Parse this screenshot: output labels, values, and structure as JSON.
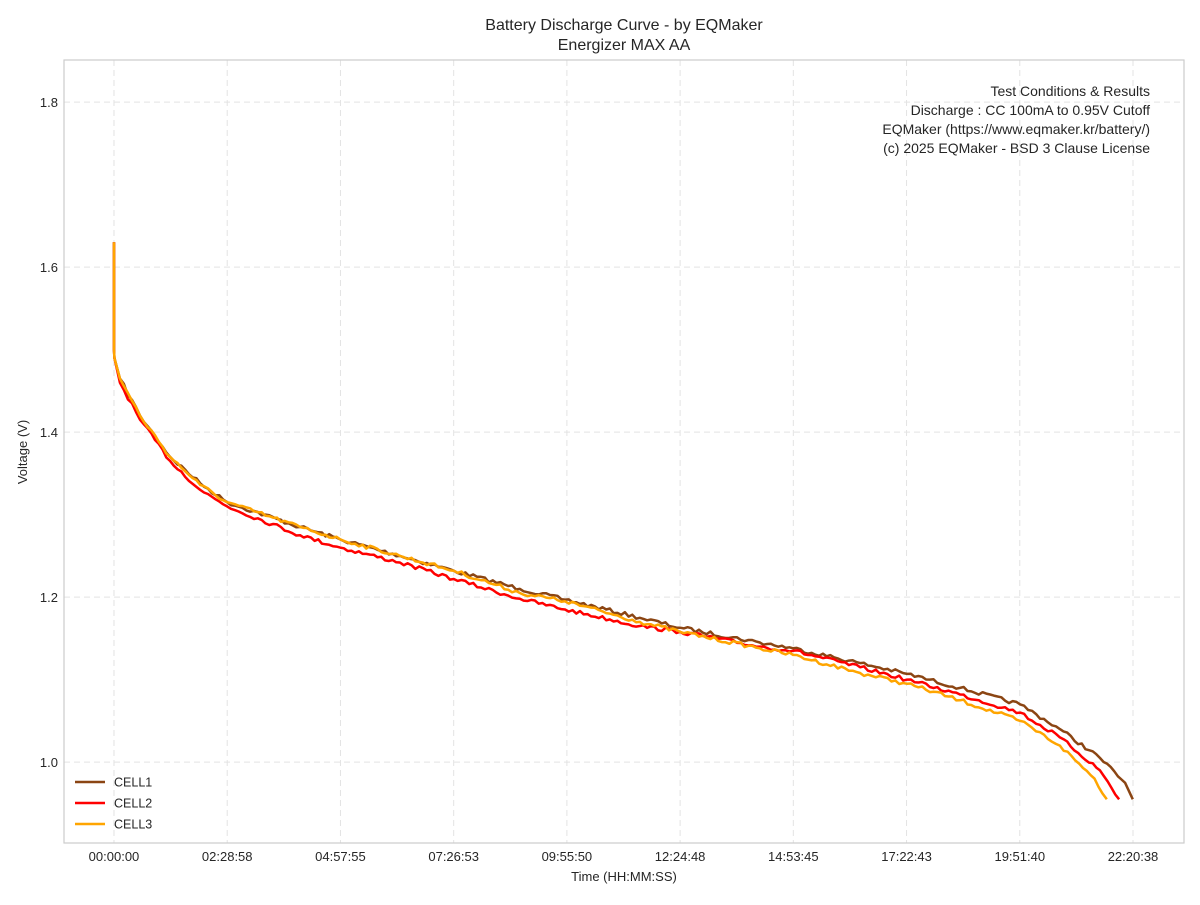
{
  "chart_data": {
    "type": "line",
    "title": "Battery Discharge Curve - by EQMaker",
    "subtitle": "Energizer MAX AA",
    "xlabel": "Time (HH:MM:SS)",
    "ylabel": "Voltage (V)",
    "x_unit": "hours",
    "xlim": [
      -1.096,
      23.462
    ],
    "ylim": [
      0.902,
      1.851
    ],
    "grid": true,
    "x_ticks": [
      {
        "value": 0,
        "label": "00:00:00"
      },
      {
        "value": 2.4828,
        "label": "02:28:58"
      },
      {
        "value": 4.9653,
        "label": "04:57:55"
      },
      {
        "value": 7.4481,
        "label": "07:26:53"
      },
      {
        "value": 9.9306,
        "label": "09:55:50"
      },
      {
        "value": 12.4133,
        "label": "12:24:48"
      },
      {
        "value": 14.8958,
        "label": "14:53:45"
      },
      {
        "value": 17.3786,
        "label": "17:22:43"
      },
      {
        "value": 19.8611,
        "label": "19:51:40"
      },
      {
        "value": 22.3439,
        "label": "22:20:38"
      }
    ],
    "y_ticks": [
      {
        "value": 1.0,
        "label": "1.0"
      },
      {
        "value": 1.2,
        "label": "1.2"
      },
      {
        "value": 1.4,
        "label": "1.4"
      },
      {
        "value": 1.6,
        "label": "1.6"
      },
      {
        "value": 1.8,
        "label": "1.8"
      }
    ],
    "legend_position": "bottom-left",
    "annotation": {
      "position": "top-right",
      "lines": [
        "Test Conditions & Results",
        "Discharge : CC 100mA to 0.95V Cutoff",
        "EQMaker (https://www.eqmaker.kr/battery/)",
        "(c) 2025 EQMaker - BSD 3 Clause License"
      ]
    },
    "series": [
      {
        "name": "CELL1",
        "color": "#8B4513",
        "x": [
          0,
          0,
          0.01,
          0.13,
          0.57,
          1.23,
          1.89,
          2.48,
          4.08,
          4.96,
          6.27,
          7.45,
          8.9,
          9.89,
          11.53,
          12.41,
          14.16,
          14.89,
          16.36,
          17.39,
          18.55,
          19.87,
          20.74,
          21.62,
          22.17,
          22.34
        ],
        "y": [
          1.63,
          1.5,
          1.49,
          1.465,
          1.42,
          1.37,
          1.338,
          1.315,
          1.285,
          1.27,
          1.25,
          1.232,
          1.21,
          1.197,
          1.175,
          1.163,
          1.145,
          1.138,
          1.12,
          1.107,
          1.09,
          1.07,
          1.04,
          1.005,
          0.975,
          0.955
        ]
      },
      {
        "name": "CELL2",
        "color": "#FF0000",
        "x": [
          0,
          0,
          0.01,
          0.13,
          0.57,
          1.23,
          1.89,
          2.48,
          4.08,
          4.96,
          6.27,
          7.45,
          8.9,
          9.89,
          11.53,
          12.41,
          14.16,
          14.89,
          16.36,
          17.39,
          18.55,
          19.87,
          20.74,
          21.62,
          22.04
        ],
        "y": [
          1.63,
          1.5,
          1.49,
          1.46,
          1.415,
          1.365,
          1.33,
          1.31,
          1.275,
          1.26,
          1.242,
          1.222,
          1.198,
          1.185,
          1.165,
          1.158,
          1.14,
          1.135,
          1.115,
          1.1,
          1.082,
          1.06,
          1.03,
          0.99,
          0.955
        ]
      },
      {
        "name": "CELL3",
        "color": "#FFA500",
        "x": [
          0,
          0,
          0.01,
          0.13,
          0.57,
          1.23,
          1.89,
          2.48,
          4.08,
          4.96,
          6.27,
          7.45,
          8.9,
          9.89,
          11.53,
          12.41,
          14.16,
          14.89,
          16.36,
          17.39,
          18.55,
          19.87,
          20.74,
          21.5,
          21.77
        ],
        "y": [
          1.63,
          1.5,
          1.49,
          1.465,
          1.42,
          1.37,
          1.336,
          1.315,
          1.285,
          1.27,
          1.25,
          1.232,
          1.205,
          1.195,
          1.17,
          1.158,
          1.138,
          1.13,
          1.108,
          1.095,
          1.075,
          1.05,
          1.02,
          0.98,
          0.955
        ]
      }
    ]
  }
}
